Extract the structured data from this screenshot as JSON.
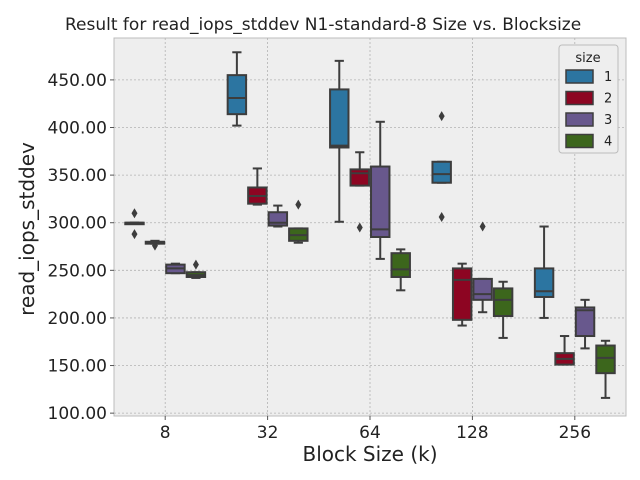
{
  "chart_data": {
    "type": "box",
    "title": "Result for read_iops_stddev N1-standard-8 Size vs. Blocksize",
    "xlabel": "Block Size (k)",
    "ylabel": "read_iops_stddev",
    "categories": [
      "8",
      "32",
      "64",
      "128",
      "256"
    ],
    "ylim": [
      97,
      494
    ],
    "yticks": [
      100,
      150,
      200,
      250,
      300,
      350,
      400,
      450
    ],
    "ytick_labels": [
      "100.00",
      "150.00",
      "200.00",
      "250.00",
      "300.00",
      "350.00",
      "400.00",
      "450.00"
    ],
    "grid": true,
    "legend": {
      "title": "size",
      "placement": "top-right"
    },
    "series": [
      {
        "name": "1",
        "color": "#348abd",
        "boxes": [
          {
            "min": 300,
            "q1": 300,
            "median": 300,
            "q3": 300,
            "max": 300,
            "outliers": [
              310,
              288
            ]
          },
          {
            "min": 402,
            "q1": 414,
            "median": 431,
            "q3": 455,
            "max": 479,
            "outliers": []
          },
          {
            "min": 301,
            "q1": 379,
            "median": 381,
            "q3": 440,
            "max": 470,
            "outliers": []
          },
          {
            "min": 342,
            "q1": 342,
            "median": 351,
            "q3": 364,
            "max": 364,
            "outliers": [
              412,
              306
            ]
          },
          {
            "min": 200,
            "q1": 222,
            "median": 228,
            "q3": 252,
            "max": 296,
            "outliers": []
          }
        ]
      },
      {
        "name": "2",
        "color": "#a60628",
        "boxes": [
          {
            "min": 278,
            "q1": 278,
            "median": 279,
            "q3": 280,
            "max": 281,
            "outliers": [
              276
            ]
          },
          {
            "min": 319,
            "q1": 320,
            "median": 328,
            "q3": 337,
            "max": 357,
            "outliers": []
          },
          {
            "min": 339,
            "q1": 339,
            "median": 352,
            "q3": 356,
            "max": 374,
            "outliers": [
              295
            ]
          },
          {
            "min": 192,
            "q1": 198,
            "median": 240,
            "q3": 252,
            "max": 257,
            "outliers": []
          },
          {
            "min": 151,
            "q1": 151,
            "median": 157,
            "q3": 163,
            "max": 181,
            "outliers": []
          }
        ]
      },
      {
        "name": "3",
        "color": "#7a68a6",
        "boxes": [
          {
            "min": 247,
            "q1": 247,
            "median": 252,
            "q3": 256,
            "max": 257,
            "outliers": []
          },
          {
            "min": 296,
            "q1": 297,
            "median": 300,
            "q3": 311,
            "max": 318,
            "outliers": []
          },
          {
            "min": 262,
            "q1": 285,
            "median": 293,
            "q3": 359,
            "max": 406,
            "outliers": []
          },
          {
            "min": 206,
            "q1": 219,
            "median": 225,
            "q3": 241,
            "max": 241,
            "outliers": [
              296
            ]
          },
          {
            "min": 168,
            "q1": 181,
            "median": 208,
            "q3": 211,
            "max": 219,
            "outliers": []
          }
        ]
      },
      {
        "name": "4",
        "color": "#467821",
        "boxes": [
          {
            "min": 242,
            "q1": 243,
            "median": 245,
            "q3": 248,
            "max": 248,
            "outliers": [
              256
            ]
          },
          {
            "min": 279,
            "q1": 281,
            "median": 287,
            "q3": 294,
            "max": 294,
            "outliers": [
              319
            ]
          },
          {
            "min": 229,
            "q1": 243,
            "median": 251,
            "q3": 268,
            "max": 272,
            "outliers": []
          },
          {
            "min": 179,
            "q1": 202,
            "median": 219,
            "q3": 231,
            "max": 238,
            "outliers": []
          },
          {
            "min": 116,
            "q1": 142,
            "median": 158,
            "q3": 171,
            "max": 176,
            "outliers": []
          }
        ]
      }
    ]
  }
}
